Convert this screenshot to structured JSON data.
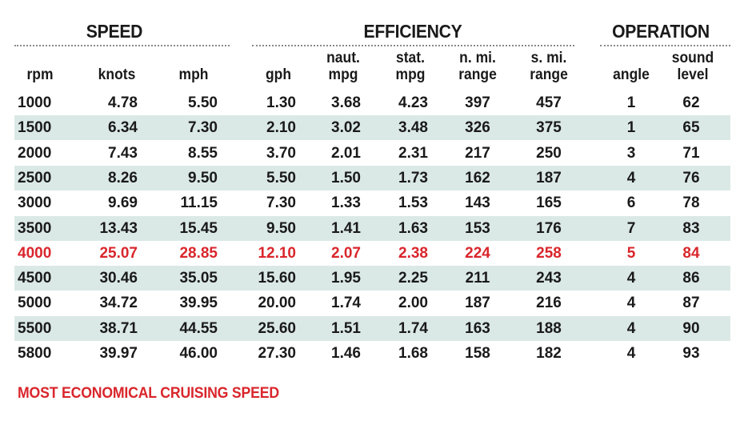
{
  "chart_data": {
    "type": "table",
    "groups": [
      {
        "title": "SPEED",
        "columns": [
          "rpm",
          "knots",
          "mph"
        ]
      },
      {
        "title": "EFFICIENCY",
        "columns": [
          "gph",
          "naut. mpg",
          "stat. mpg",
          "n. mi. range",
          "s. mi. range"
        ]
      },
      {
        "title": "OPERATION",
        "columns": [
          "angle",
          "sound level"
        ]
      }
    ],
    "columns": [
      {
        "key": "rpm",
        "lines": [
          "rpm"
        ]
      },
      {
        "key": "knots",
        "lines": [
          "knots"
        ]
      },
      {
        "key": "mph",
        "lines": [
          "mph"
        ]
      },
      {
        "key": "gph",
        "lines": [
          "gph"
        ]
      },
      {
        "key": "naut_mpg",
        "lines": [
          "naut.",
          "mpg"
        ]
      },
      {
        "key": "stat_mpg",
        "lines": [
          "stat.",
          "mpg"
        ]
      },
      {
        "key": "n_mi_range",
        "lines": [
          "n. mi.",
          "range"
        ]
      },
      {
        "key": "s_mi_range",
        "lines": [
          "s. mi.",
          "range"
        ]
      },
      {
        "key": "angle",
        "lines": [
          "angle"
        ]
      },
      {
        "key": "sound_level",
        "lines": [
          "sound",
          "level"
        ]
      }
    ],
    "rows": [
      [
        "1000",
        "4.78",
        "5.50",
        "1.30",
        "3.68",
        "4.23",
        "397",
        "457",
        "1",
        "62"
      ],
      [
        "1500",
        "6.34",
        "7.30",
        "2.10",
        "3.02",
        "3.48",
        "326",
        "375",
        "1",
        "65"
      ],
      [
        "2000",
        "7.43",
        "8.55",
        "3.70",
        "2.01",
        "2.31",
        "217",
        "250",
        "3",
        "71"
      ],
      [
        "2500",
        "8.26",
        "9.50",
        "5.50",
        "1.50",
        "1.73",
        "162",
        "187",
        "4",
        "76"
      ],
      [
        "3000",
        "9.69",
        "11.15",
        "7.30",
        "1.33",
        "1.53",
        "143",
        "165",
        "6",
        "78"
      ],
      [
        "3500",
        "13.43",
        "15.45",
        "9.50",
        "1.41",
        "1.63",
        "153",
        "176",
        "7",
        "83"
      ],
      [
        "4000",
        "25.07",
        "28.85",
        "12.10",
        "2.07",
        "2.38",
        "224",
        "258",
        "5",
        "84"
      ],
      [
        "4500",
        "30.46",
        "35.05",
        "15.60",
        "1.95",
        "2.25",
        "211",
        "243",
        "4",
        "86"
      ],
      [
        "5000",
        "34.72",
        "39.95",
        "20.00",
        "1.74",
        "2.00",
        "187",
        "216",
        "4",
        "87"
      ],
      [
        "5500",
        "38.71",
        "44.55",
        "25.60",
        "1.51",
        "1.74",
        "163",
        "188",
        "4",
        "90"
      ],
      [
        "5800",
        "39.97",
        "46.00",
        "27.30",
        "1.46",
        "1.68",
        "158",
        "182",
        "4",
        "93"
      ]
    ],
    "highlighted_row_rpm": "4000",
    "footnote": "MOST ECONOMICAL CRUISING SPEED"
  },
  "colors": {
    "highlight": "#d9262c",
    "stripe": "#dbe9e6",
    "text": "#1a1a1a",
    "rule": "#8a8a8a"
  }
}
